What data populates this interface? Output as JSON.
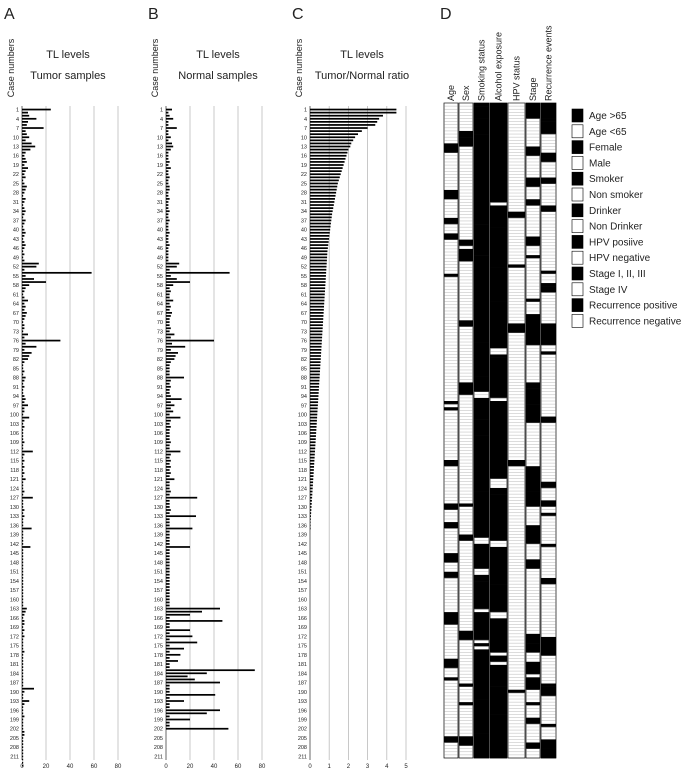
{
  "chart_data": [
    {
      "panel": "A",
      "type": "bar",
      "orientation": "horizontal",
      "title": "TL levels",
      "subtitle": "Tumor samples",
      "ylabel": "Case numbers",
      "xlabel": "",
      "xlim": [
        0,
        80
      ],
      "xticks": [
        0,
        20,
        40,
        60,
        80
      ],
      "case_ticks": [
        1,
        4,
        7,
        10,
        13,
        16,
        19,
        22,
        25,
        28,
        31,
        34,
        37,
        40,
        43,
        46,
        49,
        52,
        55,
        58,
        61,
        64,
        67,
        70,
        73,
        76,
        79,
        82,
        85,
        88,
        91,
        94,
        97,
        100,
        103,
        106,
        109,
        112,
        115,
        118,
        121,
        124,
        127,
        130,
        133,
        136,
        139,
        142,
        145,
        148,
        151,
        154,
        157,
        160,
        163,
        166,
        169,
        172,
        175,
        178,
        181,
        184,
        187,
        190,
        193,
        196,
        199,
        202,
        205,
        208,
        211
      ],
      "values": [
        24,
        5,
        6,
        12,
        5,
        4,
        18,
        3,
        4,
        6,
        3,
        8,
        11,
        7,
        3,
        2,
        3,
        4,
        2,
        5,
        3,
        2,
        3,
        1,
        2,
        4,
        3,
        2,
        1,
        3,
        2,
        1,
        2,
        3,
        2,
        1,
        3,
        2,
        1,
        2,
        3,
        2,
        1,
        2,
        3,
        2,
        1,
        2,
        1,
        2,
        14,
        12,
        2,
        58,
        3,
        10,
        20,
        6,
        3,
        2,
        1,
        2,
        5,
        2,
        3,
        2,
        4,
        3,
        2,
        1,
        2,
        2,
        1,
        5,
        2,
        32,
        3,
        12,
        2,
        8,
        6,
        5,
        2,
        1,
        1,
        2,
        1,
        3,
        2,
        1,
        2,
        1,
        1,
        2,
        3,
        2,
        5,
        2,
        2,
        1,
        6,
        2,
        1,
        2,
        1,
        1,
        1,
        1,
        2,
        1,
        1,
        9,
        2,
        1,
        2,
        1,
        2,
        1,
        2,
        1,
        3,
        1,
        1,
        1,
        2,
        1,
        9,
        1,
        1,
        1,
        2,
        1,
        2,
        1,
        1,
        1,
        8,
        1,
        1,
        1,
        1,
        1,
        7,
        1,
        1,
        1,
        1,
        1,
        1,
        1,
        1,
        1,
        1,
        1,
        1,
        1,
        1,
        1,
        1,
        1,
        1,
        1,
        4,
        3,
        2,
        1,
        2,
        2,
        1,
        2,
        1,
        2,
        1,
        1,
        1,
        1,
        2,
        1,
        1,
        1,
        1,
        1,
        1,
        1,
        1,
        1,
        1,
        1,
        10,
        2,
        1,
        1,
        6,
        2,
        1,
        1,
        1,
        2,
        1,
        1,
        1,
        1,
        2,
        2,
        1,
        1,
        1,
        1,
        1,
        1,
        1,
        1,
        1,
        1
      ]
    },
    {
      "panel": "B",
      "type": "bar",
      "orientation": "horizontal",
      "title": "TL levels",
      "subtitle": "Normal samples",
      "ylabel": "Case numbers",
      "xlabel": "",
      "xlim": [
        0,
        80
      ],
      "xticks": [
        0,
        20,
        40,
        60,
        80
      ],
      "case_ticks": [
        1,
        4,
        7,
        10,
        13,
        16,
        19,
        22,
        25,
        28,
        31,
        34,
        37,
        40,
        43,
        46,
        49,
        52,
        55,
        58,
        61,
        64,
        67,
        70,
        73,
        76,
        79,
        82,
        85,
        88,
        91,
        94,
        97,
        100,
        103,
        106,
        109,
        112,
        115,
        118,
        121,
        124,
        127,
        130,
        133,
        136,
        139,
        142,
        145,
        148,
        151,
        154,
        157,
        160,
        163,
        166,
        169,
        172,
        175,
        178,
        181,
        184,
        187,
        190,
        193,
        196,
        199,
        202,
        205,
        208,
        211
      ],
      "values": [
        5,
        2,
        3,
        6,
        2,
        2,
        9,
        2,
        2,
        4,
        2,
        5,
        6,
        4,
        2,
        2,
        2,
        3,
        2,
        4,
        2,
        2,
        3,
        2,
        2,
        3,
        3,
        2,
        2,
        3,
        2,
        2,
        2,
        3,
        2,
        2,
        3,
        2,
        2,
        2,
        3,
        2,
        2,
        2,
        3,
        2,
        2,
        2,
        2,
        2,
        11,
        9,
        3,
        53,
        4,
        9,
        20,
        6,
        3,
        4,
        3,
        3,
        6,
        3,
        4,
        3,
        5,
        4,
        3,
        3,
        3,
        4,
        3,
        7,
        4,
        40,
        5,
        16,
        4,
        10,
        8,
        7,
        4,
        3,
        3,
        3,
        3,
        15,
        4,
        3,
        4,
        3,
        3,
        4,
        13,
        4,
        7,
        4,
        6,
        3,
        12,
        4,
        3,
        4,
        3,
        3,
        3,
        3,
        4,
        3,
        3,
        12,
        4,
        3,
        4,
        3,
        4,
        3,
        4,
        3,
        7,
        3,
        3,
        3,
        4,
        3,
        26,
        3,
        3,
        3,
        4,
        3,
        25,
        3,
        3,
        3,
        22,
        3,
        3,
        3,
        3,
        3,
        20,
        3,
        3,
        3,
        3,
        3,
        3,
        3,
        3,
        3,
        3,
        3,
        3,
        3,
        3,
        3,
        3,
        3,
        3,
        3,
        45,
        30,
        20,
        3,
        47,
        3,
        3,
        20,
        3,
        22,
        3,
        26,
        3,
        15,
        3,
        12,
        3,
        10,
        3,
        3,
        74,
        34,
        18,
        24,
        45,
        3,
        3,
        3,
        41,
        3,
        15,
        3,
        3,
        45,
        34,
        3,
        20,
        3,
        3,
        52
      ]
    },
    {
      "panel": "C",
      "type": "bar",
      "orientation": "horizontal",
      "title": "TL levels",
      "subtitle": "Tumor/Normal ratio",
      "ylabel": "Case numbers",
      "xlabel": "",
      "xlim": [
        0,
        5
      ],
      "xticks": [
        0,
        1,
        2,
        3,
        4,
        5
      ],
      "case_ticks": [
        1,
        4,
        7,
        10,
        13,
        16,
        19,
        22,
        25,
        28,
        31,
        34,
        37,
        40,
        43,
        46,
        49,
        52,
        55,
        58,
        61,
        64,
        67,
        70,
        73,
        76,
        79,
        82,
        85,
        88,
        91,
        94,
        97,
        100,
        103,
        106,
        109,
        112,
        115,
        118,
        121,
        124,
        127,
        130,
        133,
        136,
        139,
        142,
        145,
        148,
        151,
        154,
        157,
        160,
        163,
        166,
        169,
        172,
        175,
        178,
        181,
        184,
        187,
        190,
        193,
        196,
        199,
        202,
        205,
        208,
        211
      ],
      "values": [
        4.5,
        4.5,
        3.8,
        3.6,
        3.5,
        3.4,
        3.0,
        2.7,
        2.5,
        2.35,
        2.25,
        2.15,
        2.1,
        2.0,
        1.95,
        1.9,
        1.85,
        1.8,
        1.75,
        1.7,
        1.65,
        1.6,
        1.55,
        1.5,
        1.45,
        1.42,
        1.39,
        1.36,
        1.33,
        1.3,
        1.27,
        1.24,
        1.21,
        1.18,
        1.15,
        1.13,
        1.11,
        1.09,
        1.07,
        1.05,
        1.03,
        1.01,
        0.99,
        0.97,
        0.95,
        0.93,
        0.91,
        0.9,
        0.89,
        0.88,
        0.87,
        0.86,
        0.85,
        0.84,
        0.83,
        0.82,
        0.81,
        0.8,
        0.79,
        0.78,
        0.77,
        0.76,
        0.75,
        0.74,
        0.73,
        0.72,
        0.71,
        0.7,
        0.69,
        0.68,
        0.67,
        0.66,
        0.65,
        0.64,
        0.63,
        0.62,
        0.61,
        0.6,
        0.59,
        0.58,
        0.57,
        0.56,
        0.55,
        0.54,
        0.53,
        0.52,
        0.51,
        0.5,
        0.49,
        0.48,
        0.47,
        0.46,
        0.45,
        0.44,
        0.43,
        0.42,
        0.41,
        0.4,
        0.39,
        0.38,
        0.37,
        0.36,
        0.35,
        0.34,
        0.33,
        0.32,
        0.31,
        0.3,
        0.29,
        0.28,
        0.27,
        0.26,
        0.25,
        0.24,
        0.23,
        0.22,
        0.21,
        0.2,
        0.19,
        0.18,
        0.17,
        0.16,
        0.15,
        0.14,
        0.13,
        0.12,
        0.11,
        0.1,
        0.09,
        0.08,
        0.07,
        0.06,
        0.05,
        0.04,
        0.03,
        0.02,
        0.01
      ]
    },
    {
      "panel": "D",
      "type": "heatmap",
      "title": "",
      "columns": [
        "Age",
        "Sex",
        "Smoking status",
        "Alcohol exposure",
        "HPV status",
        "Stage",
        "Recurrence events"
      ],
      "rows": 211,
      "legend": [
        {
          "label": "Age >65",
          "color": "#000000"
        },
        {
          "label": "Age <65",
          "color": "#ffffff"
        },
        {
          "label": "Female",
          "color": "#000000"
        },
        {
          "label": "Male",
          "color": "#ffffff"
        },
        {
          "label": "Smoker",
          "color": "#000000"
        },
        {
          "label": "Non smoker",
          "color": "#ffffff"
        },
        {
          "label": "Drinker",
          "color": "#000000"
        },
        {
          "label": "Non Drinker",
          "color": "#ffffff"
        },
        {
          "label": "HPV posiive",
          "color": "#000000"
        },
        {
          "label": "HPV negative",
          "color": "#ffffff"
        },
        {
          "label": "Stage I, II, III",
          "color": "#000000"
        },
        {
          "label": "Stage IV",
          "color": "#ffffff"
        },
        {
          "label": "Recurrence positive",
          "color": "#000000"
        },
        {
          "label": "Recurrence negative",
          "color": "#ffffff"
        }
      ],
      "black_fraction": [
        0.3,
        0.3,
        0.86,
        0.82,
        0.12,
        0.55,
        0.25
      ]
    }
  ],
  "labels": {
    "panel_a": "A",
    "panel_b": "B",
    "panel_c": "C",
    "panel_d": "D"
  },
  "colors": {
    "bar": "#000000",
    "axis": "#bbbbbb",
    "cell_black": "#000000",
    "cell_white": "#ffffff"
  }
}
